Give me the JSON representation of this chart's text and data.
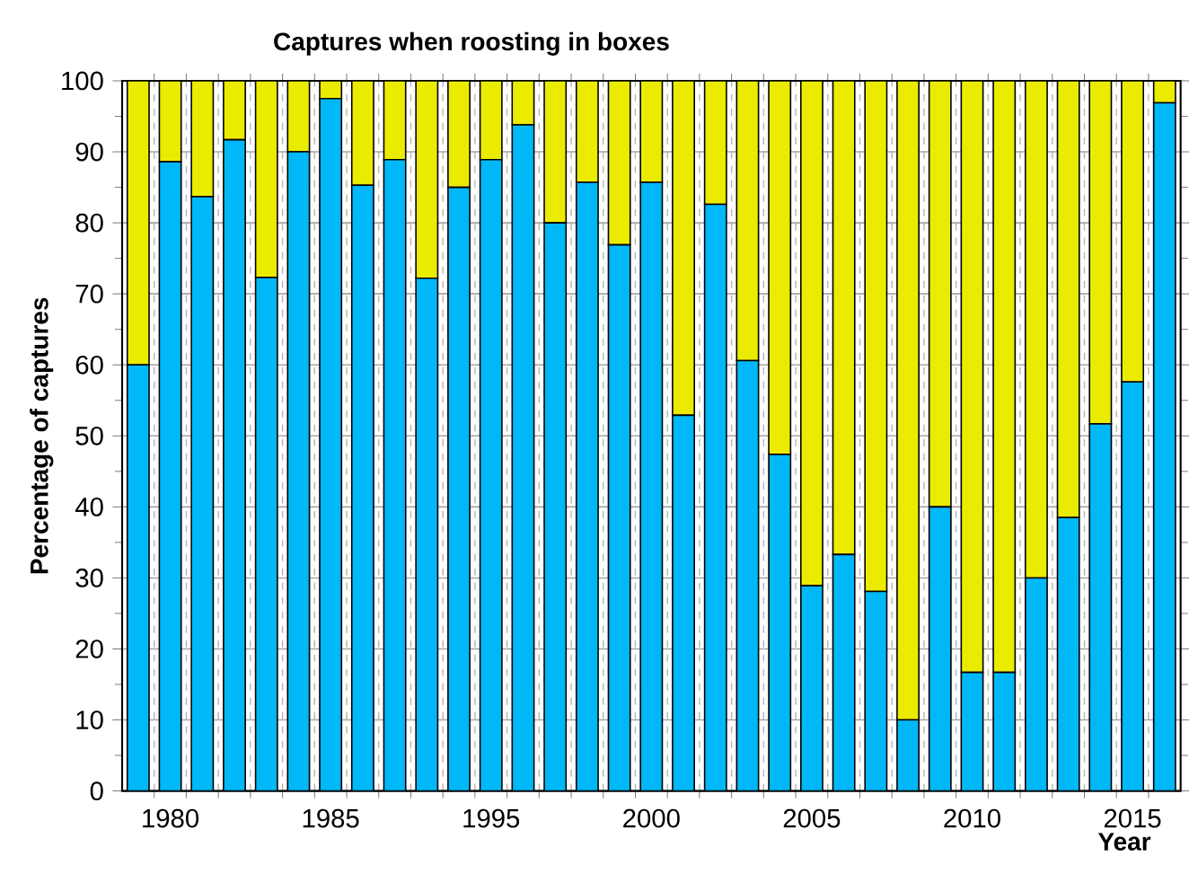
{
  "chart_data": {
    "type": "bar",
    "stacked": true,
    "title": "Captures when roosting in boxes",
    "xlabel": "Year",
    "ylabel": "Percentage of captures",
    "categories": [
      null,
      "1980",
      null,
      null,
      null,
      null,
      "1985",
      null,
      null,
      null,
      null,
      "1995",
      null,
      null,
      null,
      null,
      "2000",
      null,
      null,
      null,
      null,
      "2005",
      null,
      null,
      null,
      null,
      "2010",
      null,
      null,
      null,
      null,
      "2015",
      null
    ],
    "series": [
      {
        "color": "#00b8f8",
        "values": [
          60,
          88.6,
          83.7,
          91.7,
          72.3,
          90,
          97.5,
          85.3,
          88.9,
          72.2,
          85,
          88.9,
          93.8,
          80,
          85.7,
          76.9,
          85.7,
          52.9,
          82.6,
          60.6,
          47.4,
          28.9,
          33.3,
          28.1,
          10,
          40,
          16.7,
          16.7,
          30,
          38.5,
          51.7,
          57.6,
          96.9
        ]
      },
      {
        "color": "#ebeb00",
        "values": [
          40,
          11.4,
          16.3,
          8.3,
          27.7,
          10,
          2.5,
          14.7,
          11.1,
          27.8,
          15,
          11.1,
          6.2,
          20,
          14.3,
          23.1,
          14.3,
          47.1,
          17.4,
          39.4,
          52.6,
          71.1,
          66.7,
          71.9,
          90,
          60,
          83.3,
          83.3,
          70,
          61.5,
          48.3,
          42.4,
          3.1
        ]
      }
    ],
    "ylim": [
      0,
      100
    ],
    "yticks": [
      0,
      10,
      20,
      30,
      40,
      50,
      60,
      70,
      80,
      90,
      100
    ],
    "grid": true
  }
}
